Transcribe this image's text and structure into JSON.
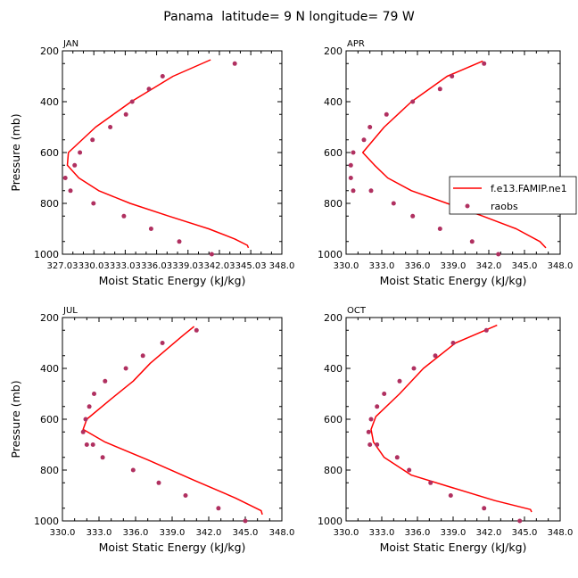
{
  "title": "Panama  latitude= 9 N longitude= 79 W",
  "colors": {
    "model": "#ff0000",
    "obs": "#b03060"
  },
  "legend": {
    "model_label": "f.e13.FAMIP.ne1",
    "obs_label": "raobs"
  },
  "chart_data": [
    {
      "type": "line",
      "panel_label": "JAN",
      "xlabel": "Moist Static Energy (kJ/kg)",
      "ylabel": "Pressure (mb)",
      "xlim": [
        327.03,
        348.0
      ],
      "ylim": [
        1000,
        200
      ],
      "xticks": [
        327.03,
        330.03,
        333.03,
        336.03,
        339.03,
        342.03,
        345.03,
        348.0
      ],
      "xtick_labels": [
        "327.03",
        "330.03",
        "333.03",
        "336.03",
        "339.03",
        "342.03",
        "345.03",
        "348.0"
      ],
      "yticks": [
        200,
        400,
        600,
        800,
        1000
      ],
      "ytick_labels": [
        "200",
        "400",
        "600",
        "800",
        "1000"
      ],
      "series": [
        {
          "name": "f.e13.FAMIP.ne1",
          "style": "line",
          "x": [
            341.2,
            337.6,
            333.6,
            330.2,
            327.6,
            327.5,
            328.6,
            330.5,
            333.5,
            337.2,
            341.0,
            343.5,
            344.7,
            344.8
          ],
          "y": [
            235,
            300,
            400,
            500,
            600,
            650,
            700,
            750,
            800,
            850,
            900,
            940,
            965,
            975
          ]
        },
        {
          "name": "raobs",
          "style": "markers",
          "x": [
            343.5,
            336.6,
            335.3,
            333.7,
            333.1,
            331.6,
            329.9,
            328.7,
            328.2,
            327.3,
            327.8,
            330.0,
            332.9,
            335.5,
            338.2,
            341.3
          ],
          "y": [
            250,
            300,
            350,
            400,
            450,
            500,
            550,
            600,
            650,
            700,
            750,
            800,
            850,
            900,
            950,
            1000
          ]
        }
      ]
    },
    {
      "type": "line",
      "panel_label": "APR",
      "xlabel": "Moist Static Energy (kJ/kg)",
      "ylabel": "Pressure (mb)",
      "xlim": [
        330.0,
        348.0
      ],
      "ylim": [
        1000,
        200
      ],
      "xticks": [
        330.0,
        333.0,
        336.0,
        339.0,
        342.0,
        345.0,
        348.0
      ],
      "xtick_labels": [
        "330.0",
        "333.0",
        "336.0",
        "339.0",
        "342.0",
        "345.0",
        "348.0"
      ],
      "yticks": [
        200,
        400,
        600,
        800,
        1000
      ],
      "ytick_labels": [
        "200",
        "400",
        "600",
        "800",
        "1000"
      ],
      "series": [
        {
          "name": "f.e13.FAMIP.ne1",
          "style": "line",
          "x": [
            341.5,
            338.5,
            335.5,
            333.2,
            331.4,
            332.4,
            333.5,
            335.5,
            338.5,
            341.5,
            344.3,
            346.3,
            346.8
          ],
          "y": [
            240,
            300,
            400,
            500,
            600,
            650,
            700,
            750,
            800,
            850,
            900,
            950,
            975
          ]
        },
        {
          "name": "raobs",
          "style": "markers",
          "x": [
            341.6,
            338.9,
            337.9,
            335.6,
            333.4,
            332.0,
            331.5,
            330.6,
            330.4,
            330.4,
            330.6,
            332.1,
            334.0,
            335.6,
            337.9,
            340.6,
            342.8
          ],
          "y": [
            250,
            300,
            350,
            400,
            450,
            500,
            550,
            600,
            650,
            700,
            750,
            750,
            800,
            850,
            900,
            950,
            1000
          ]
        }
      ]
    },
    {
      "type": "line",
      "panel_label": "JUL",
      "xlabel": "Moist Static Energy (kJ/kg)",
      "ylabel": "Pressure (mb)",
      "xlim": [
        330.0,
        348.0
      ],
      "ylim": [
        1000,
        200
      ],
      "xticks": [
        330.0,
        333.0,
        336.0,
        339.0,
        342.0,
        345.0,
        348.0
      ],
      "xtick_labels": [
        "330.0",
        "333.0",
        "336.0",
        "339.0",
        "342.0",
        "345.0",
        "348.0"
      ],
      "yticks": [
        200,
        400,
        600,
        800,
        1000
      ],
      "ytick_labels": [
        "200",
        "400",
        "600",
        "800",
        "1000"
      ],
      "series": [
        {
          "name": "f.e13.FAMIP.ne1",
          "style": "line",
          "x": [
            340.8,
            339.9,
            337.2,
            335.8,
            334.0,
            332.0,
            331.7,
            333.5,
            337.0,
            340.8,
            344.2,
            346.3,
            346.4
          ],
          "y": [
            235,
            270,
            380,
            450,
            520,
            600,
            640,
            690,
            760,
            840,
            910,
            960,
            975
          ]
        },
        {
          "name": "raobs",
          "style": "markers",
          "x": [
            341.0,
            338.2,
            336.6,
            335.2,
            333.5,
            332.6,
            332.2,
            331.9,
            331.7,
            332.0,
            332.5,
            333.3,
            335.8,
            337.9,
            340.1,
            342.8,
            345.0
          ],
          "y": [
            250,
            300,
            350,
            400,
            450,
            500,
            550,
            600,
            650,
            700,
            700,
            750,
            800,
            850,
            900,
            950,
            1000
          ]
        }
      ]
    },
    {
      "type": "line",
      "panel_label": "OCT",
      "xlabel": "Moist Static Energy (kJ/kg)",
      "ylabel": "Pressure (mb)",
      "xlim": [
        330.0,
        348.0
      ],
      "ylim": [
        1000,
        200
      ],
      "xticks": [
        330.0,
        333.0,
        336.0,
        339.0,
        342.0,
        345.0,
        348.0
      ],
      "xtick_labels": [
        "330.0",
        "333.0",
        "336.0",
        "339.0",
        "342.0",
        "345.0",
        "348.0"
      ],
      "series": [
        {
          "name": "f.e13.FAMIP.ne1",
          "style": "line",
          "x": [
            342.7,
            339.2,
            336.5,
            334.5,
            332.5,
            332.1,
            332.3,
            333.2,
            335.5,
            339.0,
            342.5,
            345.5,
            345.6
          ],
          "y": [
            230,
            300,
            400,
            500,
            590,
            640,
            690,
            750,
            820,
            870,
            920,
            955,
            965
          ]
        },
        {
          "name": "raobs",
          "style": "markers",
          "x": [
            341.8,
            339.0,
            337.5,
            335.7,
            334.5,
            333.2,
            332.6,
            332.1,
            331.9,
            332.0,
            332.6,
            334.3,
            335.3,
            337.1,
            338.8,
            341.6,
            344.6
          ],
          "y": [
            250,
            300,
            350,
            400,
            450,
            500,
            550,
            600,
            650,
            700,
            700,
            750,
            800,
            850,
            900,
            950,
            1000
          ]
        }
      ],
      "yticks": [
        200,
        400,
        600,
        800,
        1000
      ],
      "ytick_labels": [
        "200",
        "400",
        "600",
        "800",
        "1000"
      ]
    }
  ]
}
